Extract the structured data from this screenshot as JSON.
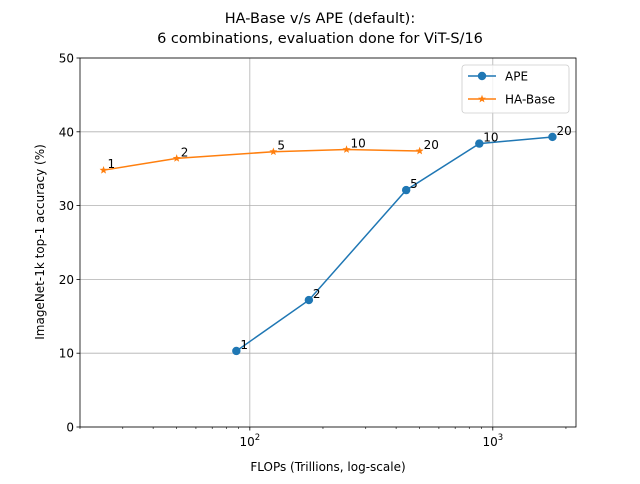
{
  "chart_data": {
    "type": "line",
    "title_line1": "HA-Base v/s APE (default):",
    "title_line2": "6 combinations, evaluation done for ViT-S/16",
    "xlabel": "FLOPs (Trillions, log-scale)",
    "ylabel": "ImageNet-1k top-1 accuracy (%)",
    "xscale": "log",
    "xlim": [
      20,
      2200
    ],
    "ylim": [
      0,
      50
    ],
    "yticks": [
      0,
      10,
      20,
      30,
      40,
      50
    ],
    "xticks_major": [
      {
        "value": 100,
        "base": "10",
        "exp": "2"
      },
      {
        "value": 1000,
        "base": "10",
        "exp": "3"
      }
    ],
    "grid": true,
    "legend_position": "top-right",
    "series": [
      {
        "name": "APE",
        "color": "#1f77b4",
        "marker": "circle",
        "x": [
          88,
          175,
          440,
          880,
          1760
        ],
        "y": [
          10.3,
          17.2,
          32.1,
          38.4,
          39.3
        ],
        "labels": [
          "1",
          "2",
          "5",
          "10",
          "20"
        ]
      },
      {
        "name": "HA-Base",
        "color": "#ff7f0e",
        "marker": "star",
        "x": [
          25,
          50,
          125,
          250,
          500
        ],
        "y": [
          34.8,
          36.4,
          37.3,
          37.6,
          37.4
        ],
        "labels": [
          "1",
          "2",
          "5",
          "10",
          "20"
        ]
      }
    ]
  }
}
